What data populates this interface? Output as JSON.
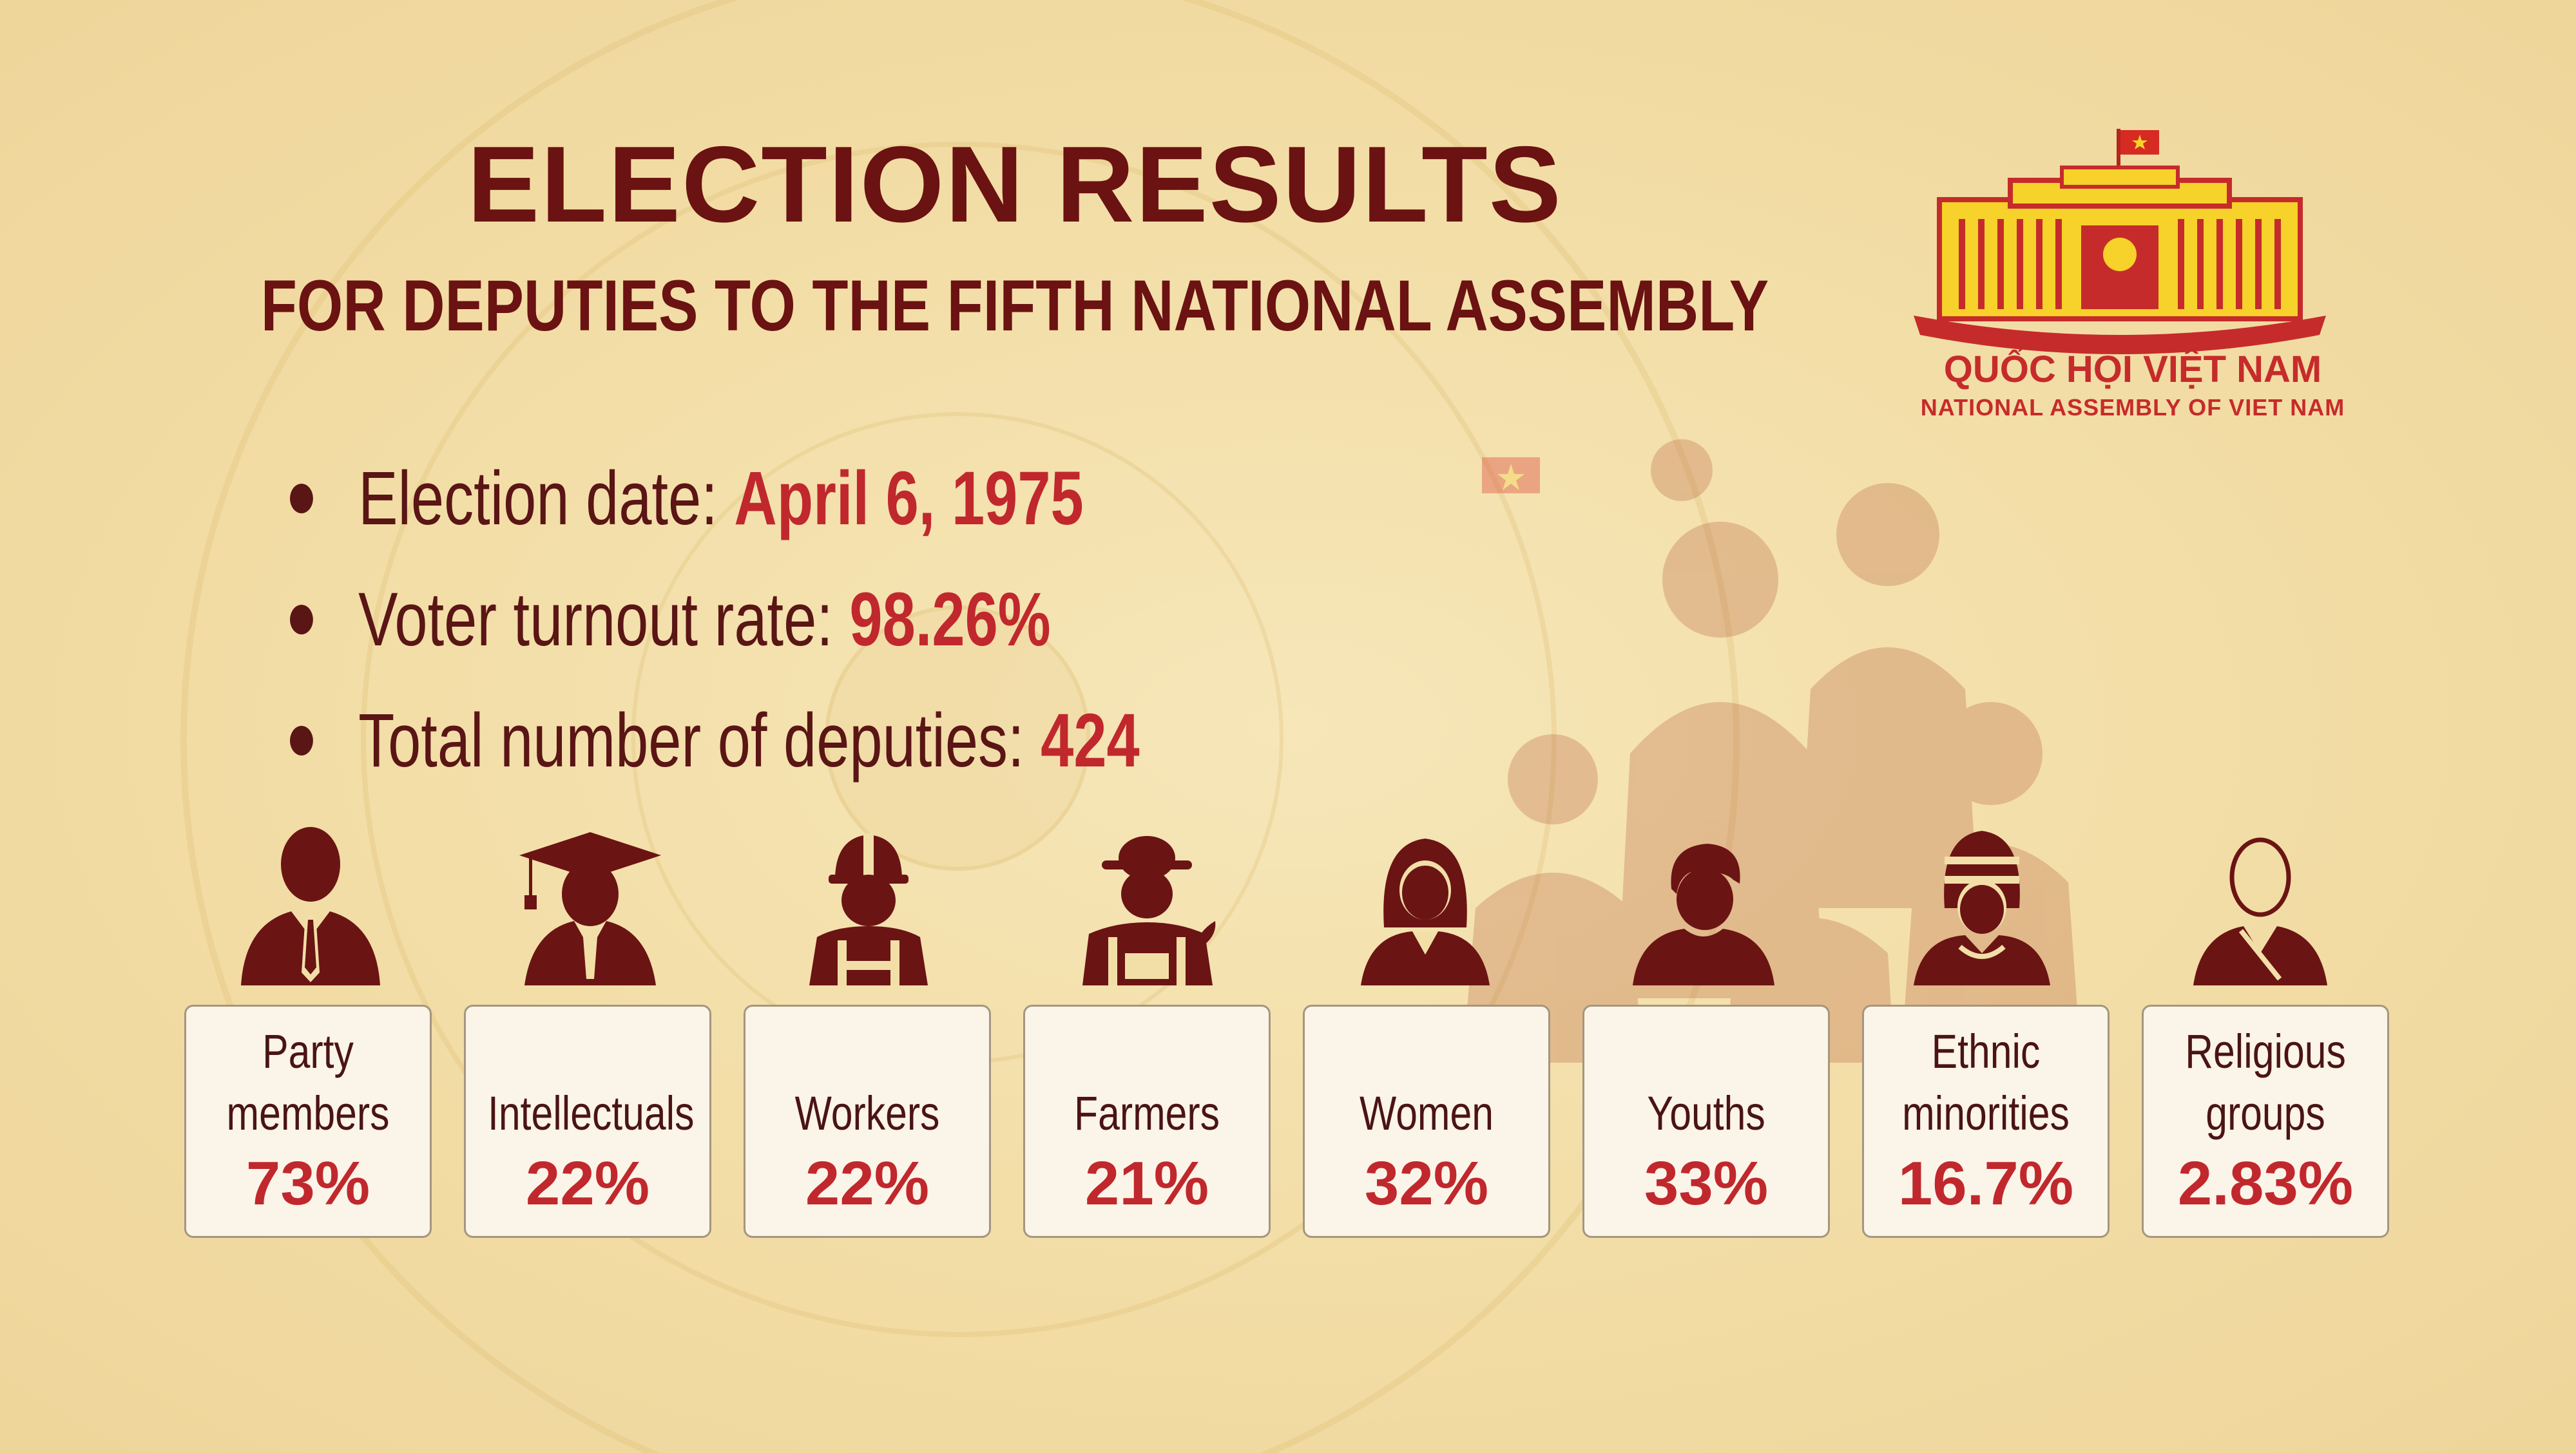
{
  "header": {
    "title": "ELECTION RESULTS",
    "subtitle": "FOR DEPUTIES TO THE FIFTH NATIONAL ASSEMBLY"
  },
  "logo": {
    "name_vi": "QUỐC HỘI VIỆT NAM",
    "name_en": "NATIONAL ASSEMBLY OF VIET NAM"
  },
  "facts": [
    {
      "label": "Election date:",
      "value": "April 6, 1975"
    },
    {
      "label": "Voter turnout rate:",
      "value": "98.26%"
    },
    {
      "label": "Total number of deputies:",
      "value": "424"
    }
  ],
  "categories": [
    {
      "label": "Party members",
      "value": "73%",
      "icon": "businessman-icon"
    },
    {
      "label": "Intellectuals",
      "value": "22%",
      "icon": "graduate-icon"
    },
    {
      "label": "Workers",
      "value": "22%",
      "icon": "worker-hardhat-icon"
    },
    {
      "label": "Farmers",
      "value": "21%",
      "icon": "farmer-icon"
    },
    {
      "label": "Women",
      "value": "32%",
      "icon": "woman-icon"
    },
    {
      "label": "Youths",
      "value": "33%",
      "icon": "youth-icon"
    },
    {
      "label": "Ethnic minorities",
      "value": "16.7%",
      "icon": "ethnic-headdress-icon"
    },
    {
      "label": "Religious groups",
      "value": "2.83%",
      "icon": "monk-icon"
    }
  ],
  "colors": {
    "background": "#f2dfa8",
    "title": "#6b1212",
    "accent_red": "#c0282d",
    "icon_maroon": "#6b1414",
    "logo_yellow": "#f6d22a"
  }
}
